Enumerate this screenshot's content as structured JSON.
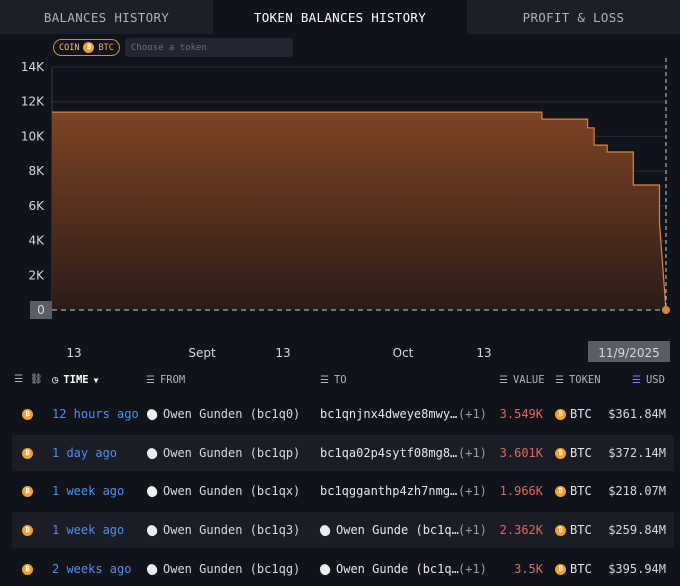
{
  "tabs": [
    {
      "label": "BALANCES HISTORY",
      "active": false
    },
    {
      "label": "TOKEN BALANCES HISTORY",
      "active": true
    },
    {
      "label": "PROFIT & LOSS",
      "active": false
    }
  ],
  "filter": {
    "coin_label": "COIN",
    "coin_symbol": "BTC",
    "token_placeholder": "Choose a token"
  },
  "chart_data": {
    "type": "area",
    "yticks": [
      "14K",
      "12K",
      "10K",
      "8K",
      "6K",
      "4K",
      "2K",
      "0"
    ],
    "ylim": [
      0,
      14000
    ],
    "x_tick_labels": [
      "13",
      "Sept",
      "13",
      "Oct",
      "13"
    ],
    "x": [
      "2025-07-31",
      "2025-08-01",
      "2025-08-10",
      "2025-08-20",
      "2025-08-30",
      "2025-09-10",
      "2025-09-20",
      "2025-10-01",
      "2025-10-10",
      "2025-10-18",
      "2025-10-20",
      "2025-10-21",
      "2025-10-26",
      "2025-10-27",
      "2025-10-28",
      "2025-10-29",
      "2025-10-30",
      "2025-10-31",
      "2025-11-03",
      "2025-11-04",
      "2025-11-05",
      "2025-11-06",
      "2025-11-07",
      "2025-11-08",
      "2025-11-09"
    ],
    "values": [
      11400,
      11400,
      11400,
      11400,
      11400,
      11400,
      11400,
      11400,
      11400,
      11400,
      11400,
      11000,
      11000,
      11000,
      10500,
      9500,
      9500,
      9100,
      9100,
      7200,
      7200,
      7200,
      7200,
      5000,
      0
    ],
    "cursor_date_label": "11/9/2025",
    "cursor_value_label": "0",
    "series_color": "#e0823e",
    "fill_color": "#8a4a24"
  },
  "table": {
    "headers": {
      "time": "TIME",
      "from": "FROM",
      "to": "TO",
      "value": "VALUE",
      "token": "TOKEN",
      "usd": "USD"
    },
    "rows": [
      {
        "time": "12 hours ago",
        "from": "Owen Gunden (bc1q0)",
        "to": "bc1qnjnx4dweye8mwy…",
        "to_entity": false,
        "more": "(+1)",
        "value": "3.549K",
        "token": "BTC",
        "usd": "$361.84M"
      },
      {
        "time": "1 day ago",
        "from": "Owen Gunden (bc1qp)",
        "to": "bc1qa02p4sytf08mg8…",
        "to_entity": false,
        "more": "(+1)",
        "value": "3.601K",
        "token": "BTC",
        "usd": "$372.14M"
      },
      {
        "time": "1 week ago",
        "from": "Owen Gunden (bc1qx)",
        "to": "bc1qgganthp4zh7nmg…",
        "to_entity": false,
        "more": "(+1)",
        "value": "1.966K",
        "token": "BTC",
        "usd": "$218.07M"
      },
      {
        "time": "1 week ago",
        "from": "Owen Gunden (bc1q3)",
        "to": "Owen Gunde (bc1q…",
        "to_entity": true,
        "more": "(+1)",
        "value": "2.362K",
        "token": "BTC",
        "usd": "$259.84M"
      },
      {
        "time": "2 weeks ago",
        "from": "Owen Gunden (bc1qg)",
        "to": "Owen Gunde (bc1q…",
        "to_entity": true,
        "more": "(+1)",
        "value": "3.5K",
        "token": "BTC",
        "usd": "$395.94M"
      }
    ]
  }
}
